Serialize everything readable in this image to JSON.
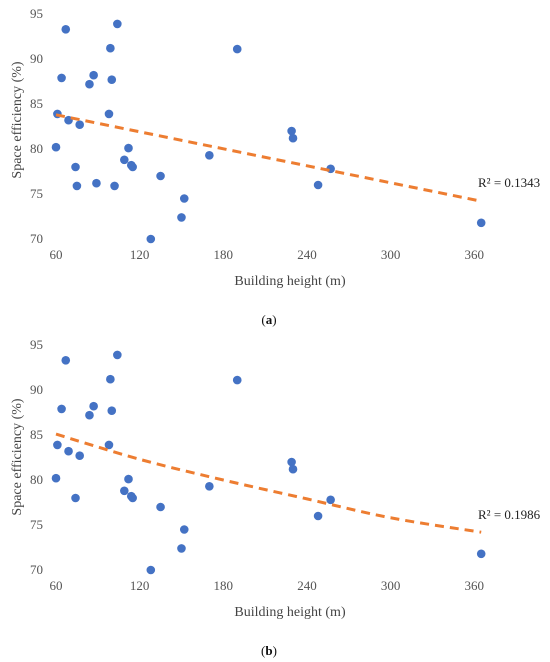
{
  "chart_data": [
    {
      "type": "scatter",
      "panel_label": "a",
      "xlabel": "Building height (m)",
      "ylabel": "Space efficiency (%)",
      "xlim": [
        60,
        400
      ],
      "ylim": [
        70,
        95
      ],
      "xticks": [
        60,
        120,
        180,
        240,
        300,
        360
      ],
      "yticks": [
        70,
        75,
        80,
        85,
        90,
        95
      ],
      "grid": false,
      "points": [
        [
          60,
          80.2
        ],
        [
          61,
          83.9
        ],
        [
          64,
          87.9
        ],
        [
          67,
          93.3
        ],
        [
          69,
          83.2
        ],
        [
          74,
          78.0
        ],
        [
          75,
          75.9
        ],
        [
          77,
          82.7
        ],
        [
          84,
          87.2
        ],
        [
          87,
          88.2
        ],
        [
          89,
          76.2
        ],
        [
          98,
          83.9
        ],
        [
          99,
          91.2
        ],
        [
          100,
          87.7
        ],
        [
          102,
          75.9
        ],
        [
          104,
          93.9
        ],
        [
          109,
          78.8
        ],
        [
          112,
          80.1
        ],
        [
          114,
          78.2
        ],
        [
          115,
          78.0
        ],
        [
          135,
          77.0
        ],
        [
          128,
          70.0
        ],
        [
          150,
          72.4
        ],
        [
          152,
          74.5
        ],
        [
          170,
          79.3
        ],
        [
          190,
          91.1
        ],
        [
          229,
          82.0
        ],
        [
          230,
          81.2
        ],
        [
          248,
          76.0
        ],
        [
          257,
          77.8
        ],
        [
          365,
          71.8
        ]
      ],
      "trendline": {
        "kind": "linear",
        "x": [
          60,
          365
        ],
        "y": [
          83.8,
          74.2
        ]
      },
      "r2_label": "R² = 0.1343",
      "colors": {
        "points": "#4472c4",
        "trend": "#ed7d31"
      }
    },
    {
      "type": "scatter",
      "panel_label": "b",
      "xlabel": "Building height (m)",
      "ylabel": "Space efficiency (%)",
      "xlim": [
        60,
        400
      ],
      "ylim": [
        70,
        95
      ],
      "xticks": [
        60,
        120,
        180,
        240,
        300,
        360
      ],
      "yticks": [
        70,
        75,
        80,
        85,
        90,
        95
      ],
      "grid": false,
      "points": [
        [
          60,
          80.2
        ],
        [
          61,
          83.9
        ],
        [
          64,
          87.9
        ],
        [
          67,
          93.3
        ],
        [
          69,
          83.2
        ],
        [
          74,
          78.0
        ],
        [
          77,
          82.7
        ],
        [
          84,
          87.2
        ],
        [
          87,
          88.2
        ],
        [
          98,
          83.9
        ],
        [
          99,
          91.2
        ],
        [
          100,
          87.7
        ],
        [
          104,
          93.9
        ],
        [
          109,
          78.8
        ],
        [
          112,
          80.1
        ],
        [
          114,
          78.2
        ],
        [
          115,
          78.0
        ],
        [
          135,
          77.0
        ],
        [
          128,
          70.0
        ],
        [
          150,
          72.4
        ],
        [
          152,
          74.5
        ],
        [
          170,
          79.3
        ],
        [
          190,
          91.1
        ],
        [
          229,
          82.0
        ],
        [
          230,
          81.2
        ],
        [
          248,
          76.0
        ],
        [
          257,
          77.8
        ],
        [
          365,
          71.8
        ]
      ],
      "trendline": {
        "kind": "curve",
        "x": [
          60,
          120,
          180,
          240,
          300,
          365
        ],
        "y": [
          85.1,
          82.3,
          80.0,
          77.9,
          75.8,
          74.2
        ]
      },
      "r2_label": "R² = 0.1986",
      "colors": {
        "points": "#4472c4",
        "trend": "#ed7d31"
      }
    }
  ]
}
